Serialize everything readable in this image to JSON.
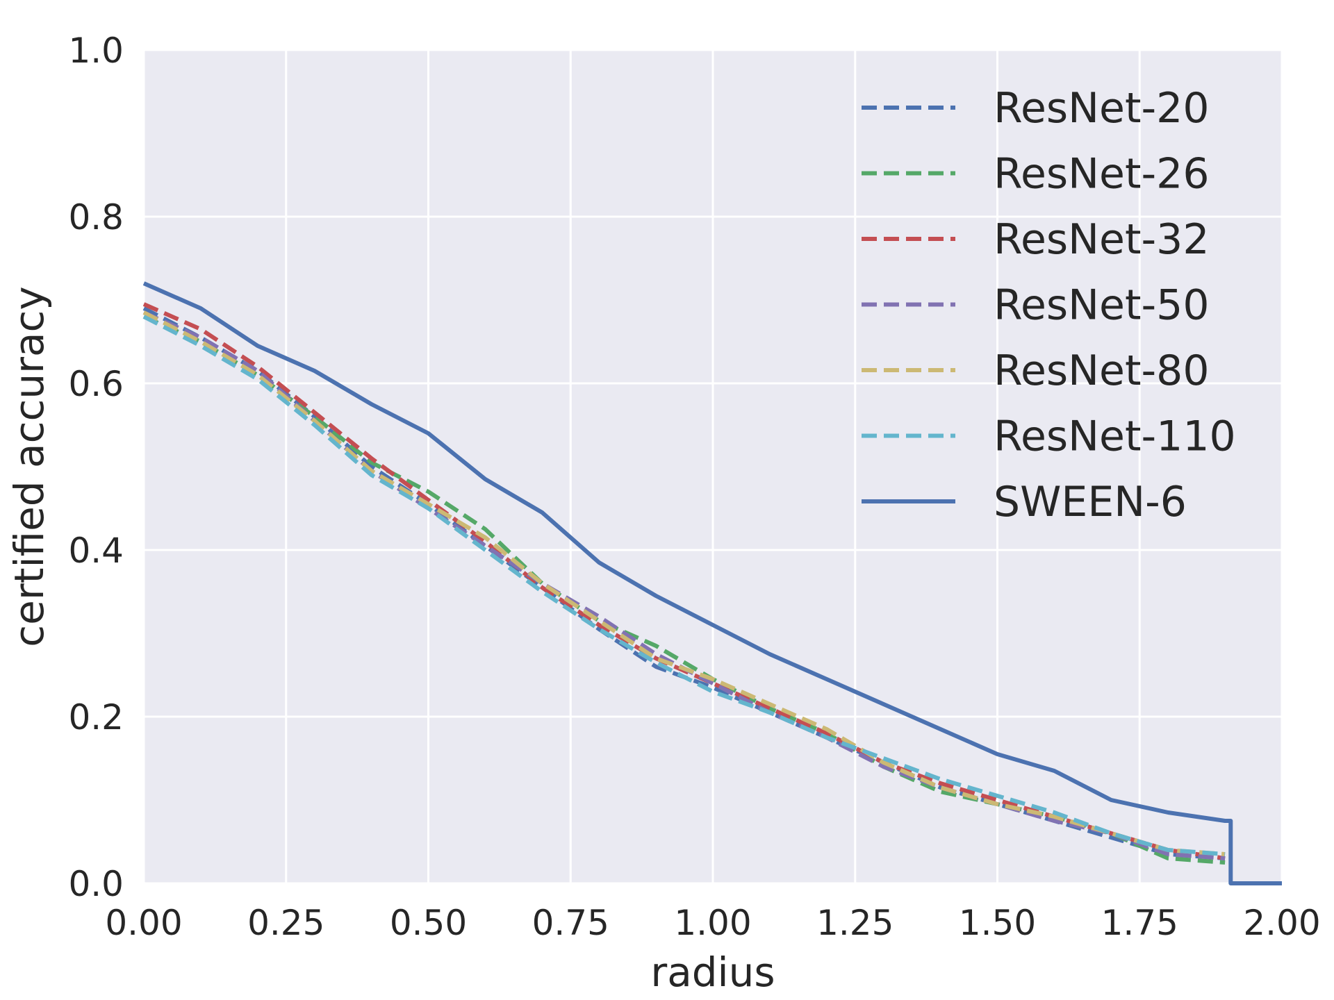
{
  "chart_data": {
    "type": "line",
    "title": "",
    "xlabel": "radius",
    "ylabel": "certified accuracy",
    "xlim": [
      0.0,
      2.0
    ],
    "ylim": [
      0.0,
      1.0
    ],
    "xticks": [
      "0.00",
      "0.25",
      "0.50",
      "0.75",
      "1.00",
      "1.25",
      "1.50",
      "1.75",
      "2.00"
    ],
    "yticks": [
      "0.0",
      "0.2",
      "0.4",
      "0.6",
      "0.8",
      "1.0"
    ],
    "grid": true,
    "legend_position": "top-right",
    "x": [
      0.0,
      0.1,
      0.2,
      0.3,
      0.4,
      0.5,
      0.6,
      0.7,
      0.8,
      0.9,
      1.0,
      1.1,
      1.2,
      1.3,
      1.4,
      1.5,
      1.6,
      1.7,
      1.8,
      1.9
    ],
    "series": [
      {
        "name": "ResNet-20",
        "color": "#4c72b0",
        "style": "dashed",
        "values": [
          0.69,
          0.655,
          0.615,
          0.56,
          0.5,
          0.455,
          0.405,
          0.355,
          0.305,
          0.26,
          0.235,
          0.205,
          0.175,
          0.145,
          0.115,
          0.095,
          0.075,
          0.055,
          0.035,
          0.03
        ]
      },
      {
        "name": "ResNet-26",
        "color": "#55a868",
        "style": "dashed",
        "values": [
          0.68,
          0.65,
          0.61,
          0.56,
          0.505,
          0.47,
          0.425,
          0.36,
          0.315,
          0.285,
          0.245,
          0.21,
          0.18,
          0.14,
          0.11,
          0.095,
          0.08,
          0.06,
          0.03,
          0.025
        ]
      },
      {
        "name": "ResNet-32",
        "color": "#c44e52",
        "style": "dashed",
        "values": [
          0.695,
          0.665,
          0.62,
          0.565,
          0.51,
          0.46,
          0.41,
          0.355,
          0.31,
          0.27,
          0.24,
          0.21,
          0.18,
          0.145,
          0.12,
          0.1,
          0.08,
          0.06,
          0.04,
          0.03
        ]
      },
      {
        "name": "ResNet-50",
        "color": "#8172b2",
        "style": "dashed",
        "values": [
          0.685,
          0.655,
          0.615,
          0.555,
          0.495,
          0.45,
          0.405,
          0.36,
          0.32,
          0.275,
          0.24,
          0.205,
          0.175,
          0.14,
          0.115,
          0.095,
          0.075,
          0.06,
          0.035,
          0.03
        ]
      },
      {
        "name": "ResNet-80",
        "color": "#ccb974",
        "style": "dashed",
        "values": [
          0.685,
          0.65,
          0.61,
          0.555,
          0.495,
          0.455,
          0.415,
          0.36,
          0.315,
          0.27,
          0.245,
          0.215,
          0.185,
          0.145,
          0.115,
          0.095,
          0.08,
          0.06,
          0.04,
          0.035
        ]
      },
      {
        "name": "ResNet-110",
        "color": "#64b5cd",
        "style": "dashed",
        "values": [
          0.68,
          0.645,
          0.605,
          0.55,
          0.49,
          0.45,
          0.4,
          0.35,
          0.305,
          0.265,
          0.23,
          0.205,
          0.175,
          0.15,
          0.125,
          0.105,
          0.085,
          0.06,
          0.04,
          0.035
        ]
      },
      {
        "name": "SWEEN-6",
        "color": "#4c72b0",
        "style": "solid",
        "values": [
          0.72,
          0.69,
          0.645,
          0.615,
          0.575,
          0.54,
          0.485,
          0.445,
          0.385,
          0.345,
          0.31,
          0.275,
          0.245,
          0.215,
          0.185,
          0.155,
          0.135,
          0.1,
          0.085,
          0.075
        ],
        "tail": {
          "x": [
            1.91,
            1.91,
            2.0
          ],
          "values": [
            0.075,
            0.0,
            0.0
          ]
        }
      }
    ]
  }
}
